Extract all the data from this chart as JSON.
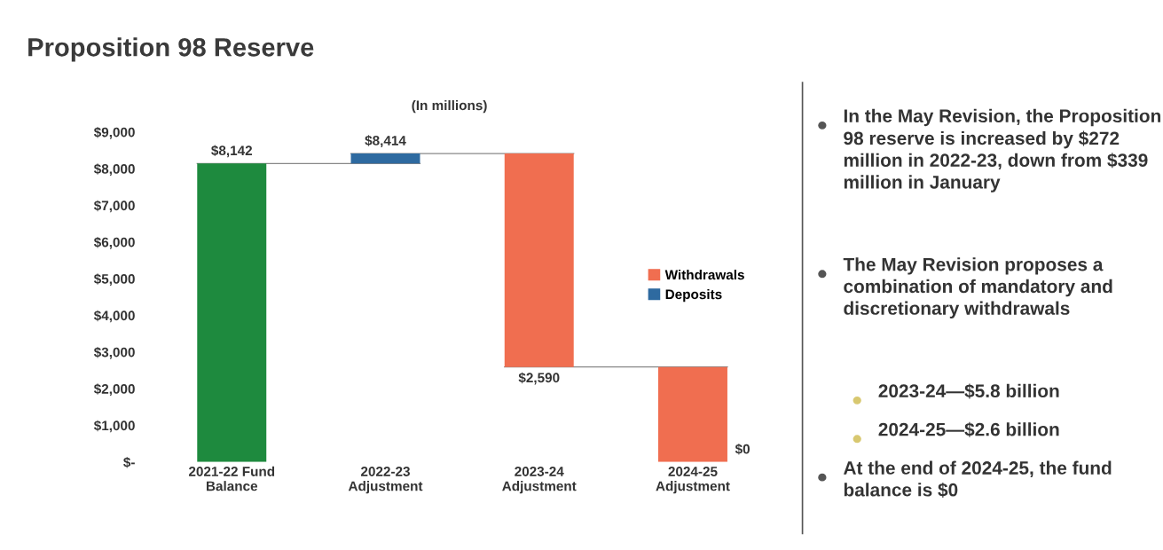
{
  "chart_data": {
    "type": "bar",
    "title": "Proposition 98 Reserve",
    "subtitle": "(In millions)",
    "categories": [
      "2021-22 Fund\nBalance",
      "2022-23\nAdjustment",
      "2023-24\nAdjustment",
      "2024-25\nAdjustment"
    ],
    "series": [
      {
        "color": "#1e8a3e",
        "values": [
          8142,
          null,
          null,
          null
        ],
        "base": [
          0,
          null,
          null,
          null
        ]
      },
      {
        "name": "Withdrawals",
        "color": "#f06e50",
        "values": [
          null,
          null,
          5824,
          2590
        ],
        "base": [
          null,
          null,
          2590,
          0
        ]
      },
      {
        "name": "Deposits",
        "color": "#2e6aa0",
        "values": [
          null,
          272,
          null,
          null
        ],
        "base": [
          null,
          8142,
          null,
          null
        ]
      }
    ],
    "value_labels": [
      "$8,142",
      "$8,414",
      "$2,590",
      "$0"
    ],
    "ylim": [
      0,
      9000
    ],
    "yticks": [
      {
        "value": 0,
        "label": "$-"
      },
      {
        "value": 1000,
        "label": "$1,000"
      },
      {
        "value": 2000,
        "label": "$2,000"
      },
      {
        "value": 3000,
        "label": "$3,000"
      },
      {
        "value": 4000,
        "label": "$4,000"
      },
      {
        "value": 5000,
        "label": "$5,000"
      },
      {
        "value": 6000,
        "label": "$6,000"
      },
      {
        "value": 7000,
        "label": "$7,000"
      },
      {
        "value": 8000,
        "label": "$8,000"
      },
      {
        "value": 9000,
        "label": "$9,000"
      }
    ],
    "grid": false,
    "legend": "right",
    "annotations": [
      "In the May Revision, the Proposition 98 reserve is increased by $272 million in 2022-23, down from $339 million in January",
      "The May Revision proposes a combination of mandatory and discretionary withdrawals",
      "2023-24—$5.8 billion",
      "2024-25—$2.6 billion",
      "At the end of 2024-25, the fund balance is $0"
    ]
  }
}
